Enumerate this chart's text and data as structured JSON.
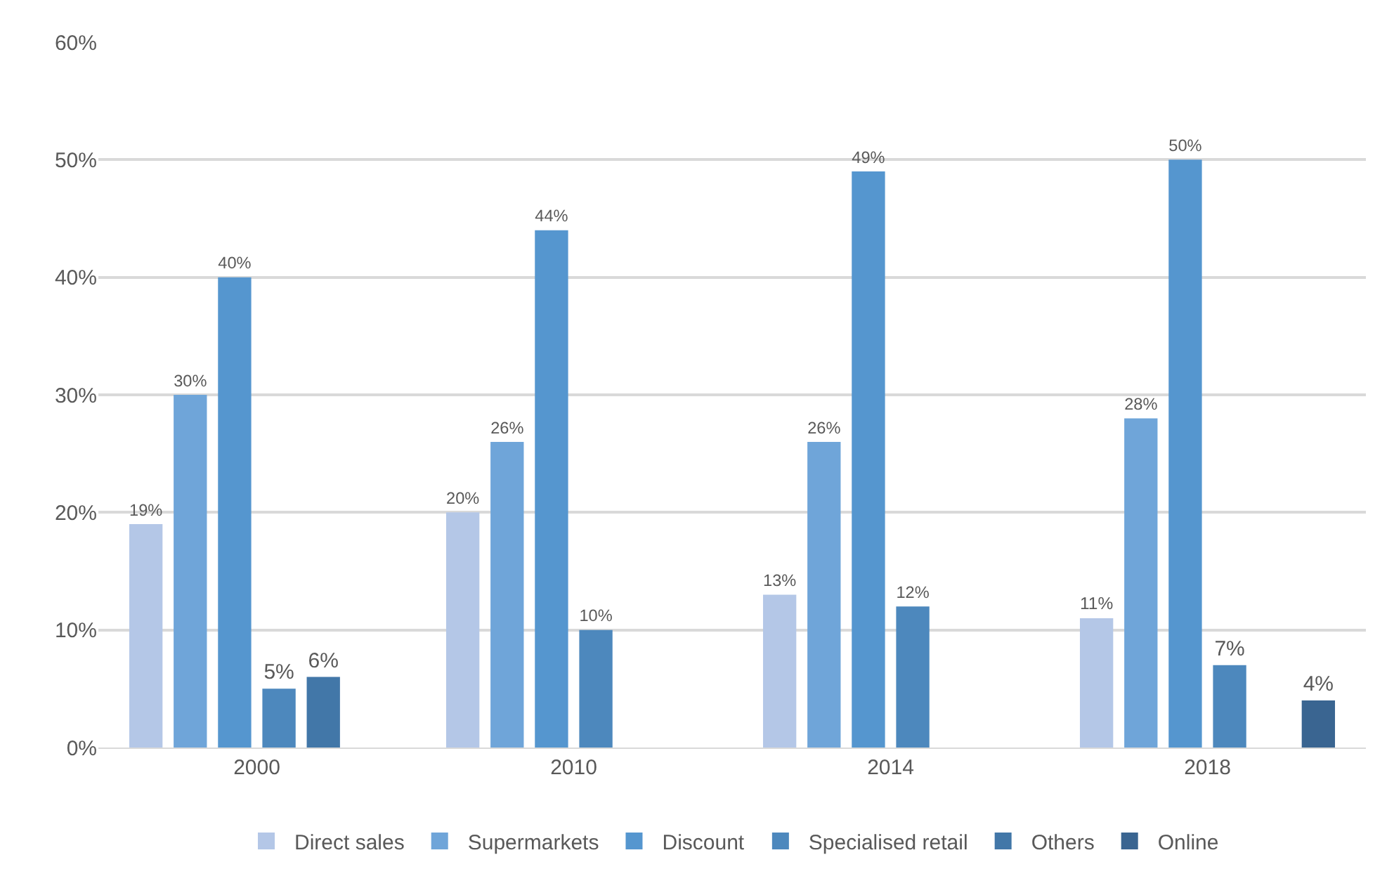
{
  "chart_data": {
    "type": "bar",
    "categories": [
      "2000",
      "2010",
      "2014",
      "2018"
    ],
    "series": [
      {
        "name": "Direct sales",
        "color": "#b4c7e7",
        "values": [
          19,
          20,
          13,
          11
        ],
        "value_labels": [
          "19%",
          "20%",
          "13%",
          "11%"
        ]
      },
      {
        "name": "Supermarkets",
        "color": "#6fa5d9",
        "values": [
          30,
          26,
          26,
          28
        ],
        "value_labels": [
          "30%",
          "26%",
          "26%",
          "28%"
        ]
      },
      {
        "name": "Discount",
        "color": "#5596cf",
        "values": [
          40,
          44,
          49,
          50
        ],
        "value_labels": [
          "40%",
          "44%",
          "49%",
          "50%"
        ]
      },
      {
        "name": "Specialised retail",
        "color": "#4d88bd",
        "values": [
          5,
          10,
          12,
          7
        ],
        "value_labels": [
          "5%",
          "10%",
          "12%",
          "7%"
        ]
      },
      {
        "name": "Others",
        "color": "#4277a8",
        "values": [
          6,
          null,
          null,
          null
        ],
        "value_labels": [
          "6%",
          null,
          null,
          null
        ]
      },
      {
        "name": "Online",
        "color": "#3a6591",
        "values": [
          null,
          null,
          null,
          4
        ],
        "value_labels": [
          null,
          null,
          null,
          "4%"
        ]
      }
    ],
    "ylim": [
      0,
      60
    ],
    "yticks": [
      {
        "value": 0,
        "label": "0%"
      },
      {
        "value": 10,
        "label": "10%"
      },
      {
        "value": 20,
        "label": "20%"
      },
      {
        "value": 30,
        "label": "30%"
      },
      {
        "value": 40,
        "label": "40%"
      },
      {
        "value": 50,
        "label": "50%"
      },
      {
        "value": 60,
        "label": "60%"
      }
    ],
    "grid": "y",
    "legend": "bottom"
  }
}
